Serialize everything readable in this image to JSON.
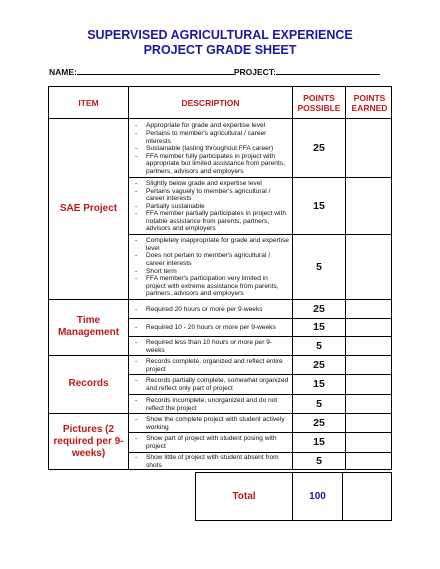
{
  "title": {
    "line1": "SUPERVISED AGRICULTURAL EXPERIENCE",
    "line2": "PROJECT GRADE SHEET"
  },
  "name_label": "NAME:",
  "project_label": "PROJECT:",
  "headers": {
    "item": "ITEM",
    "description": "DESCRIPTION",
    "points_possible": "POINTS POSSIBLE",
    "points_earned": "POINTS EARNED"
  },
  "sections": [
    {
      "item": "SAE Project",
      "rows": [
        {
          "points": "25",
          "lines": [
            "Appropriate for grade and expertise level",
            "Pertains to member's agricultural / career interests",
            "Sustainable (lasting throughout FFA career)",
            "FFA member fully participates in project with appropriate but limited assistance from parents, partners, advisors and employers"
          ]
        },
        {
          "points": "15",
          "lines": [
            "Slightly below grade and expertise level",
            "Pertains vaguely to member's agricultural / career interests",
            "Partially sustainable",
            "FFA member partially participates in project with notable assistance from parents, partners, advisors and employers"
          ]
        },
        {
          "points": "5",
          "lines": [
            "Completely inappropriate for grade and expertise level",
            "Does not pertain to member's agricultural / career interests",
            "Short term",
            "FFA member's participation very limited in project with extreme assistance from parents, partners, advisors and employers"
          ]
        }
      ]
    },
    {
      "item": "Time Management",
      "rows": [
        {
          "points": "25",
          "lines": [
            "Required 20 hours or more per 9-weeks"
          ]
        },
        {
          "points": "15",
          "lines": [
            "Required 10 - 20 hours or more per 9-weeks"
          ]
        },
        {
          "points": "5",
          "lines": [
            "Required less than 10 hours or more per 9-weeks"
          ]
        }
      ]
    },
    {
      "item": "Records",
      "rows": [
        {
          "points": "25",
          "lines": [
            "Records complete, organized and reflect entire project"
          ]
        },
        {
          "points": "15",
          "lines": [
            "Records partially complete, somewhat organized and reflect only part of project"
          ]
        },
        {
          "points": "5",
          "lines": [
            "Records incomplete, unorganized and do not reflect the project"
          ]
        }
      ]
    },
    {
      "item": "Pictures (2 required per 9-weeks)",
      "rows": [
        {
          "points": "25",
          "lines": [
            "Show the complete project with student actively working"
          ]
        },
        {
          "points": "15",
          "lines": [
            "Show part of project with student posing with project"
          ]
        },
        {
          "points": "5",
          "lines": [
            "Show little of project with student absent from shots"
          ]
        }
      ]
    }
  ],
  "total": {
    "label": "Total",
    "value": "100"
  }
}
